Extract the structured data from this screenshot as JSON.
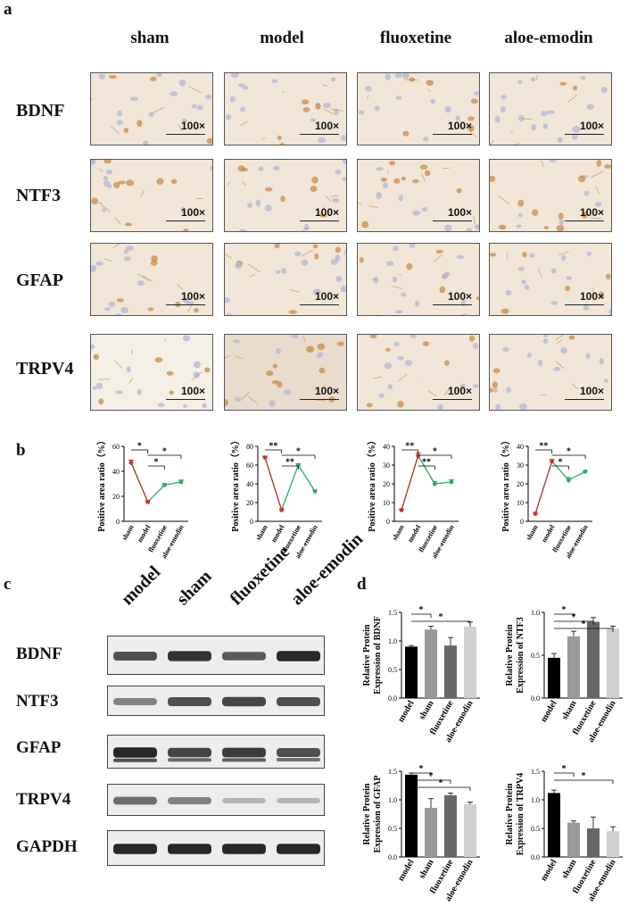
{
  "panel_labels": {
    "a": "a",
    "b": "b",
    "c": "c",
    "d": "d"
  },
  "ihc": {
    "columns": [
      "sham",
      "model",
      "fluoxetine",
      "aloe-emodin"
    ],
    "rows": [
      "BDNF",
      "NTF3",
      "GFAP",
      "TRPV4"
    ],
    "magnification": "100×"
  },
  "western_blot": {
    "lanes": [
      "model",
      "sham",
      "fluoxetine",
      "aloe-emodin"
    ],
    "rows": [
      "BDNF",
      "NTF3",
      "GFAP",
      "TRPV4",
      "GAPDH"
    ],
    "band_intensity": {
      "BDNF": [
        0.75,
        0.9,
        0.7,
        0.95
      ],
      "NTF3": [
        0.5,
        0.75,
        0.8,
        0.75
      ],
      "GFAP": [
        0.95,
        0.8,
        0.85,
        0.75
      ],
      "TRPV4": [
        0.6,
        0.5,
        0.25,
        0.25
      ],
      "GAPDH": [
        0.95,
        0.95,
        0.95,
        0.95
      ]
    }
  },
  "chart_data": [
    {
      "id": "b1",
      "type": "line",
      "categories": [
        "sham",
        "model",
        "fluoxetine",
        "aloe-emodin"
      ],
      "values": [
        47,
        15.5,
        29,
        31.5
      ],
      "errors": [
        2,
        1,
        1.2,
        1.5
      ],
      "ylabel": "Positive area ratio（%）",
      "ylim": [
        0,
        60
      ],
      "yticks": [
        0,
        20,
        40,
        60
      ],
      "colors": [
        "#c0392b",
        "#c0392b",
        "#27ae60",
        "#27ae60"
      ],
      "significance": [
        {
          "from": 0,
          "to": 1,
          "label": "*"
        },
        {
          "from": 1,
          "to": 2,
          "label": "*"
        },
        {
          "from": 1,
          "to": 3,
          "label": "*"
        }
      ]
    },
    {
      "id": "b2",
      "type": "line",
      "categories": [
        "sham",
        "model",
        "fluoxetine",
        "aloe-emodin"
      ],
      "values": [
        68,
        12,
        60,
        32
      ],
      "errors": [
        1.5,
        1.5,
        1.5,
        1.5
      ],
      "ylabel": "Positive area ratio（%）",
      "ylim": [
        0,
        80
      ],
      "yticks": [
        0,
        20,
        40,
        60,
        80
      ],
      "colors": [
        "#c0392b",
        "#c0392b",
        "#27ae60",
        "#27ae60"
      ],
      "significance": [
        {
          "from": 0,
          "to": 1,
          "label": "**"
        },
        {
          "from": 1,
          "to": 2,
          "label": "**"
        },
        {
          "from": 1,
          "to": 3,
          "label": "*"
        }
      ]
    },
    {
      "id": "b3",
      "type": "line",
      "categories": [
        "sham",
        "model",
        "fluoxetine",
        "aloe-emodin"
      ],
      "values": [
        6,
        35,
        20,
        21
      ],
      "errors": [
        0.5,
        1.5,
        1.2,
        1.2
      ],
      "ylabel": "Positive area ratio（%）",
      "ylim": [
        0,
        40
      ],
      "yticks": [
        0,
        10,
        20,
        30,
        40
      ],
      "colors": [
        "#c0392b",
        "#c0392b",
        "#27ae60",
        "#27ae60"
      ],
      "significance": [
        {
          "from": 0,
          "to": 1,
          "label": "**"
        },
        {
          "from": 1,
          "to": 2,
          "label": "**"
        },
        {
          "from": 1,
          "to": 3,
          "label": "*"
        }
      ]
    },
    {
      "id": "b4",
      "type": "line",
      "categories": [
        "sham",
        "model",
        "fluoxetine",
        "aloe-emodin"
      ],
      "values": [
        4,
        32,
        22,
        26.5
      ],
      "errors": [
        0.8,
        1,
        1.5,
        0.5
      ],
      "ylabel": "Positive area ratio（%）",
      "ylim": [
        0,
        40
      ],
      "yticks": [
        0,
        10,
        20,
        30,
        40
      ],
      "colors": [
        "#c0392b",
        "#c0392b",
        "#27ae60",
        "#27ae60"
      ],
      "significance": [
        {
          "from": 0,
          "to": 1,
          "label": "**"
        },
        {
          "from": 1,
          "to": 2,
          "label": "*"
        },
        {
          "from": 1,
          "to": 3,
          "label": "*"
        }
      ]
    },
    {
      "id": "d1",
      "type": "bar",
      "categories": [
        "model",
        "sham",
        "fluoxetine",
        "aloe-emodin"
      ],
      "values": [
        0.9,
        1.2,
        0.92,
        1.25
      ],
      "errors": [
        0.02,
        0.06,
        0.14,
        0.08
      ],
      "ylabel_lines": [
        "Relative Protein",
        "Expression of BDNF"
      ],
      "ylim": [
        0,
        1.5
      ],
      "yticks": [
        0.0,
        0.5,
        1.0,
        1.5
      ],
      "colors": [
        "#000000",
        "#999999",
        "#666666",
        "#d0d0d0"
      ],
      "significance": [
        {
          "from": 0,
          "to": 1,
          "label": "*"
        },
        {
          "from": 0,
          "to": 3,
          "label": "*"
        }
      ]
    },
    {
      "id": "d2",
      "type": "bar",
      "categories": [
        "model",
        "sham",
        "fluoxetine",
        "aloe-emodin"
      ],
      "values": [
        0.47,
        0.72,
        0.89,
        0.81
      ],
      "errors": [
        0.05,
        0.06,
        0.05,
        0.03
      ],
      "ylabel_lines": [
        "Relative Protein",
        "Expression of NTF3"
      ],
      "ylim": [
        0,
        1.0
      ],
      "yticks": [
        0.0,
        0.5,
        1.0
      ],
      "colors": [
        "#000000",
        "#999999",
        "#666666",
        "#d0d0d0"
      ],
      "significance": [
        {
          "from": 0,
          "to": 1,
          "label": "*"
        },
        {
          "from": 0,
          "to": 2,
          "label": "*"
        },
        {
          "from": 0,
          "to": 3,
          "label": "*"
        }
      ]
    },
    {
      "id": "d3",
      "type": "bar",
      "categories": [
        "model",
        "sham",
        "fluoxetine",
        "aloe-emodin"
      ],
      "values": [
        1.44,
        0.86,
        1.08,
        0.92
      ],
      "errors": [
        0.03,
        0.16,
        0.04,
        0.04
      ],
      "ylabel_lines": [
        "Relative Protein",
        "Expression of GFAP"
      ],
      "ylim": [
        0,
        1.5
      ],
      "yticks": [
        0.0,
        0.5,
        1.0,
        1.5
      ],
      "colors": [
        "#000000",
        "#999999",
        "#666666",
        "#d0d0d0"
      ],
      "significance": [
        {
          "from": 0,
          "to": 1,
          "label": "*"
        },
        {
          "from": 0,
          "to": 2,
          "label": "*"
        },
        {
          "from": 0,
          "to": 3,
          "label": "*"
        }
      ]
    },
    {
      "id": "d4",
      "type": "bar",
      "categories": [
        "model",
        "sham",
        "fluoxetine",
        "aloe-emodin"
      ],
      "values": [
        1.12,
        0.6,
        0.5,
        0.45
      ],
      "errors": [
        0.05,
        0.03,
        0.2,
        0.08
      ],
      "ylabel_lines": [
        "Relative Protein",
        "Expression of TRPV4"
      ],
      "ylim": [
        0,
        1.5
      ],
      "yticks": [
        0.0,
        0.5,
        1.0,
        1.5
      ],
      "colors": [
        "#000000",
        "#999999",
        "#666666",
        "#d0d0d0"
      ],
      "significance": [
        {
          "from": 0,
          "to": 1,
          "label": "*"
        },
        {
          "from": 0,
          "to": 3,
          "label": "*"
        }
      ]
    }
  ]
}
